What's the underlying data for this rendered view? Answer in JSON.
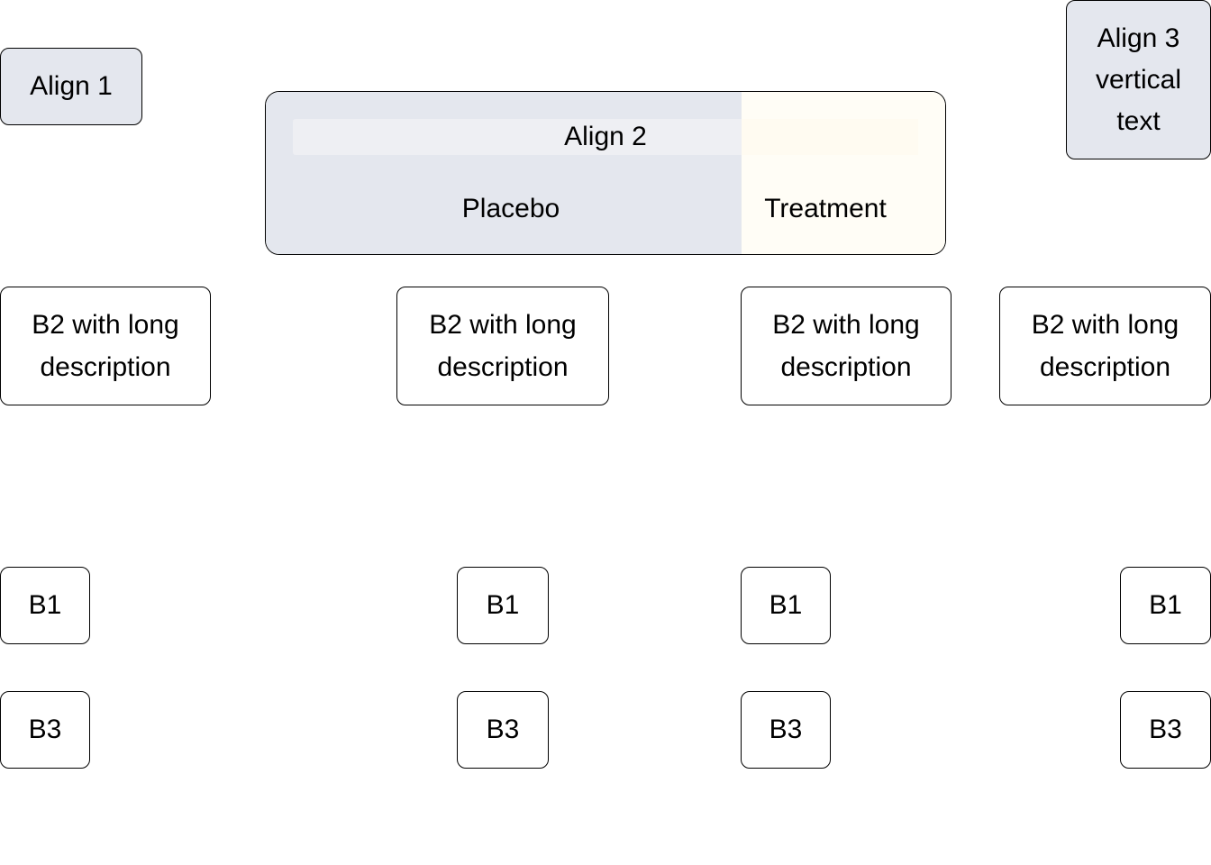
{
  "align1": {
    "label": "Align 1"
  },
  "align2": {
    "title": "Align 2",
    "groups": [
      "Placebo",
      "Treatment"
    ],
    "colors": {
      "placebo": "#e4e7ee",
      "treatment": "#fffdf6"
    }
  },
  "align3": {
    "label": "Align 3\nvertical\ntext"
  },
  "b2": [
    {
      "label": "B2 with long\ndescription"
    },
    {
      "label": "B2 with long\ndescription"
    },
    {
      "label": "B2 with long\ndescription"
    },
    {
      "label": "B2 with long\ndescription"
    }
  ],
  "b1": [
    {
      "label": "B1"
    },
    {
      "label": "B1"
    },
    {
      "label": "B1"
    },
    {
      "label": "B1"
    }
  ],
  "b3": [
    {
      "label": "B3"
    },
    {
      "label": "B3"
    },
    {
      "label": "B3"
    },
    {
      "label": "B3"
    }
  ],
  "colors": {
    "gray_box": "#e4e7ee",
    "border": "#000000"
  }
}
